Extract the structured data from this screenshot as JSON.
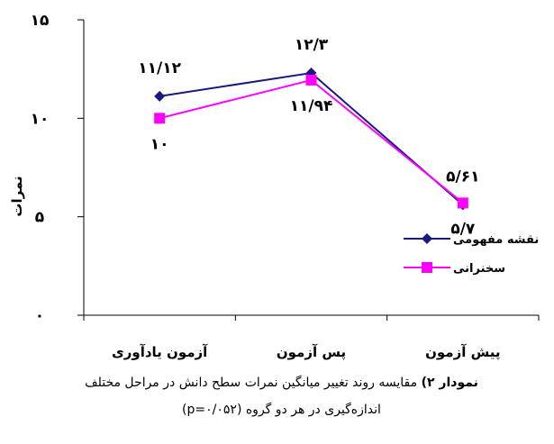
{
  "chart_data": {
    "type": "line",
    "categories": [
      "پیش آزمون",
      "پس آزمون",
      "آزمون یادآوری"
    ],
    "ylabel": "نمرات",
    "ylim": [
      0,
      15
    ],
    "yticks": [
      0,
      5,
      10,
      15
    ],
    "ytick_labels": [
      "۰",
      "۵",
      "۱۰",
      "۱۵"
    ],
    "grid": false,
    "legend_position": "right",
    "series": [
      {
        "name": "نقشه مفهومی",
        "color": "#1a1a7e",
        "marker": "diamond",
        "values": [
          5.61,
          12.3,
          11.12
        ],
        "value_labels": [
          "۵/۶۱",
          "۱۲/۳",
          "۱۱/۱۲"
        ]
      },
      {
        "name": "سخنرانی",
        "color": "#ff00ff",
        "marker": "square",
        "values": [
          5.7,
          11.94,
          10
        ],
        "value_labels": [
          "۵/۷",
          "۱۱/۹۴",
          "۱۰"
        ]
      }
    ]
  },
  "caption": {
    "prefix": "نمودار ۲)",
    "text": "مقایسه روند تغییر میانگین نمرات سطح دانش در مراحل مختلف",
    "line2": "اندازه‌گیری در هر دو گروه (p=۰/۰۵۲)"
  }
}
